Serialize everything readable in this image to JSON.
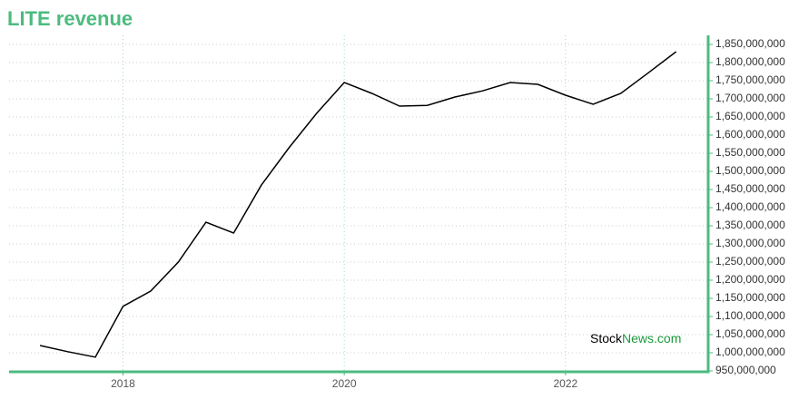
{
  "chart_data": {
    "type": "line",
    "title": "LITE revenue",
    "watermark": [
      "Stock",
      "News.com"
    ],
    "x": [
      2017.25,
      2017.5,
      2017.75,
      2018.0,
      2018.25,
      2018.5,
      2018.75,
      2019.0,
      2019.25,
      2019.5,
      2019.75,
      2020.0,
      2020.25,
      2020.5,
      2020.75,
      2021.0,
      2021.25,
      2021.5,
      2021.75,
      2022.0,
      2022.25,
      2022.5,
      2022.75,
      2023.0
    ],
    "series": [
      {
        "name": "LITE revenue",
        "color": "#000000",
        "values": [
          1020000000,
          1003000000,
          988000000,
          1128000000,
          1170000000,
          1250000000,
          1360000000,
          1330000000,
          1462000000,
          1565000000,
          1660000000,
          1745000000,
          1715000000,
          1680000000,
          1682000000,
          1705000000,
          1722000000,
          1745000000,
          1740000000,
          1710000000,
          1685000000,
          1715000000,
          1772000000,
          1830000000
        ]
      }
    ],
    "xlim": [
      2016.97,
      2023.29
    ],
    "xticks": [
      2018,
      2020,
      2022
    ],
    "ylim": [
      950000000,
      1875000000
    ],
    "yticks": [
      {
        "value": 950000000,
        "label": "950,000,000"
      },
      {
        "value": 1000000000,
        "label": "1,000,000,000"
      },
      {
        "value": 1050000000,
        "label": "1,050,000,000"
      },
      {
        "value": 1100000000,
        "label": "1,100,000,000"
      },
      {
        "value": 1150000000,
        "label": "1,150,000,000"
      },
      {
        "value": 1200000000,
        "label": "1,200,000,000"
      },
      {
        "value": 1250000000,
        "label": "1,250,000,000"
      },
      {
        "value": 1300000000,
        "label": "1,300,000,000"
      },
      {
        "value": 1350000000,
        "label": "1,350,000,000"
      },
      {
        "value": 1400000000,
        "label": "1,400,000,000"
      },
      {
        "value": 1450000000,
        "label": "1,450,000,000"
      },
      {
        "value": 1500000000,
        "label": "1,500,000,000"
      },
      {
        "value": 1550000000,
        "label": "1,550,000,000"
      },
      {
        "value": 1600000000,
        "label": "1,600,000,000"
      },
      {
        "value": 1650000000,
        "label": "1,650,000,000"
      },
      {
        "value": 1700000000,
        "label": "1,700,000,000"
      },
      {
        "value": 1750000000,
        "label": "1,750,000,000"
      },
      {
        "value": 1800000000,
        "label": "1,800,000,000"
      },
      {
        "value": 1850000000,
        "label": "1,850,000,000"
      }
    ],
    "grid": true
  }
}
